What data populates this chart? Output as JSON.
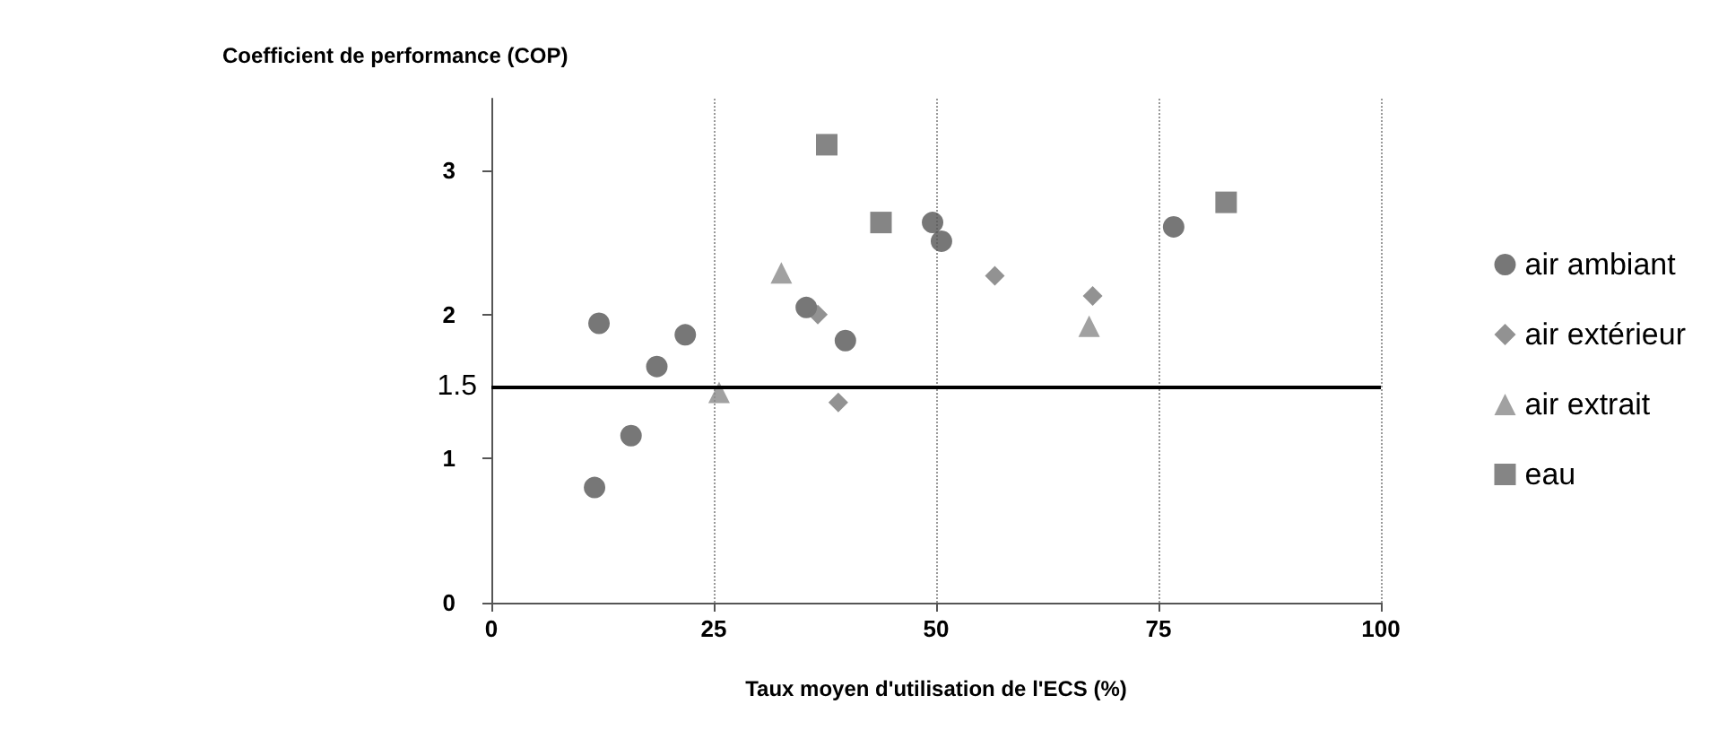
{
  "chart_data": {
    "type": "scatter",
    "ylabel": "Coefficient de performance (COP)",
    "xlabel": "Taux moyen d'utilisation de l'ECS (%)",
    "xlim": [
      0,
      100
    ],
    "xticks": [
      0,
      25,
      50,
      75,
      100
    ],
    "ylim": [
      0,
      3.5
    ],
    "yticks": [
      0,
      1,
      2,
      3
    ],
    "grid": "x",
    "legend": "right",
    "ref_lines": [
      {
        "axis": "y",
        "value": 1.5,
        "label": "1.5",
        "color": "#000000"
      }
    ],
    "series": [
      {
        "name": "air ambiant",
        "color": "#555555",
        "marker": "circle",
        "x": [
          12.1,
          18.6,
          21.8,
          15.7,
          11.6,
          35.4,
          39.8,
          49.6,
          50.6,
          76.7
        ],
        "values": [
          1.94,
          1.64,
          1.86,
          1.16,
          0.8,
          2.05,
          1.82,
          2.64,
          2.51,
          2.61
        ]
      },
      {
        "name": "air extérieur",
        "color": "#777777",
        "marker": "diamond",
        "x": [
          36.7,
          39,
          56.6,
          67.6
        ],
        "values": [
          2,
          1.39,
          2.27,
          2.13
        ]
      },
      {
        "name": "air extrait",
        "color": "#8a8a8a",
        "marker": "triangle",
        "x": [
          32.6,
          25.6,
          67.2
        ],
        "values": [
          2.29,
          1.46,
          1.92
        ]
      },
      {
        "name": "eau",
        "color": "#666666",
        "marker": "square",
        "x": [
          37.7,
          43.8,
          82.6
        ],
        "values": [
          3.18,
          2.64,
          2.78
        ]
      }
    ]
  }
}
